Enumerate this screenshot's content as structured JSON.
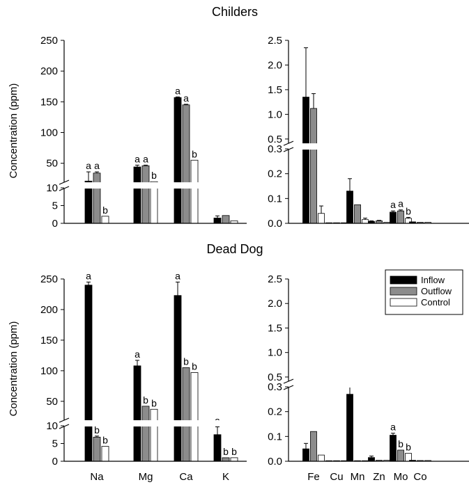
{
  "figure": {
    "section_titles": [
      "Childers",
      "Dead Dog"
    ],
    "ylabel": "Concentration (ppm)"
  },
  "colors": {
    "inflow": "#000000",
    "outflow": "#8c8c8c",
    "control": "#ffffff"
  },
  "chart_data": [
    {
      "id": "childers-major",
      "type": "bar",
      "title": "Childers",
      "ylabel": "Concentration (ppm)",
      "axis": "major",
      "categories": [
        "Na",
        "Mg",
        "Ca",
        "K"
      ],
      "show_category_labels": false,
      "series": [
        {
          "name": "Inflow",
          "color": "#000000",
          "values": [
            21,
            44,
            157,
            1.5
          ],
          "errors": [
            15,
            3,
            1,
            0.6
          ]
        },
        {
          "name": "Outflow",
          "color": "#8c8c8c",
          "values": [
            34,
            46,
            145,
            2.2
          ],
          "errors": [
            2,
            1,
            1,
            0
          ]
        },
        {
          "name": "Control",
          "color": "#ffffff",
          "values": [
            2,
            20,
            55,
            0.7
          ],
          "errors": [
            0,
            0,
            0,
            0
          ]
        }
      ],
      "letters": [
        [
          "a",
          "a",
          "b"
        ],
        [
          "a",
          "a",
          "b"
        ],
        [
          "a",
          "a",
          "b"
        ],
        [
          "",
          "",
          ""
        ]
      ],
      "ylim": [
        0,
        250
      ],
      "axis_break": {
        "lower_max": 10,
        "lower_ticks": [
          0,
          5,
          10
        ],
        "upper_ticks": [
          50,
          100,
          150,
          200,
          250
        ]
      }
    },
    {
      "id": "childers-trace",
      "type": "bar",
      "axis": "trace",
      "categories": [
        "Fe",
        "Cu",
        "Mn",
        "Zn",
        "Mo",
        "Co"
      ],
      "show_category_labels": false,
      "series": [
        {
          "name": "Inflow",
          "color": "#000000",
          "values": [
            1.35,
            0.002,
            0.13,
            0.008,
            0.045,
            0.006
          ],
          "errors": [
            1.0,
            0,
            0.05,
            0.002,
            0.005,
            0
          ]
        },
        {
          "name": "Outflow",
          "color": "#8c8c8c",
          "values": [
            1.12,
            0.002,
            0.075,
            0.01,
            0.05,
            0.004
          ],
          "errors": [
            0.3,
            0,
            0,
            0.002,
            0.004,
            0
          ]
        },
        {
          "name": "Control",
          "color": "#ffffff",
          "values": [
            0.04,
            0.002,
            0.015,
            0.004,
            0.02,
            0.004
          ],
          "errors": [
            0.03,
            0,
            0.006,
            0,
            0.004,
            0
          ]
        }
      ],
      "letters": [
        [
          "",
          "",
          ""
        ],
        [
          "",
          "",
          ""
        ],
        [
          "",
          "",
          ""
        ],
        [
          "",
          "",
          ""
        ],
        [
          "a",
          "a",
          "b"
        ],
        [
          "",
          "",
          ""
        ]
      ],
      "ylim": [
        0,
        2.5
      ],
      "axis_break": {
        "lower_max": 0.3,
        "lower_ticks": [
          0.0,
          0.1,
          0.2,
          0.3
        ],
        "upper_ticks": [
          0.5,
          1.0,
          1.5,
          2.0,
          2.5
        ]
      }
    },
    {
      "id": "deaddog-major",
      "type": "bar",
      "title": "Dead Dog",
      "ylabel": "Concentration (ppm)",
      "axis": "major",
      "categories": [
        "Na",
        "Mg",
        "Ca",
        "K"
      ],
      "show_category_labels": true,
      "series": [
        {
          "name": "Inflow",
          "color": "#000000",
          "values": [
            240,
            108,
            223,
            7.5
          ],
          "errors": [
            5,
            9,
            22,
            2.2
          ]
        },
        {
          "name": "Outflow",
          "color": "#8c8c8c",
          "values": [
            6.8,
            42,
            105,
            1
          ],
          "errors": [
            0.3,
            0,
            0,
            0
          ]
        },
        {
          "name": "Control",
          "color": "#ffffff",
          "values": [
            4.2,
            37,
            97,
            1
          ],
          "errors": [
            0,
            0,
            0,
            0
          ]
        }
      ],
      "letters": [
        [
          "a",
          "b",
          "b"
        ],
        [
          "a",
          "b",
          "b"
        ],
        [
          "a",
          "b",
          "b"
        ],
        [
          "a",
          "b",
          "b"
        ]
      ],
      "ylim": [
        0,
        250
      ],
      "axis_break": {
        "lower_max": 10,
        "lower_ticks": [
          0,
          5,
          10
        ],
        "upper_ticks": [
          50,
          100,
          150,
          200,
          250
        ]
      }
    },
    {
      "id": "deaddog-trace",
      "type": "bar",
      "axis": "trace",
      "categories": [
        "Fe",
        "Cu",
        "Mn",
        "Zn",
        "Mo",
        "Co"
      ],
      "show_category_labels": true,
      "series": [
        {
          "name": "Inflow",
          "color": "#000000",
          "values": [
            0.05,
            0.002,
            0.27,
            0.015,
            0.105,
            0.004
          ],
          "errors": [
            0.022,
            0,
            0.1,
            0.006,
            0.008,
            0
          ]
        },
        {
          "name": "Outflow",
          "color": "#8c8c8c",
          "values": [
            0.12,
            0.002,
            0.002,
            0.004,
            0.045,
            0.003
          ],
          "errors": [
            0,
            0,
            0,
            0,
            0,
            0
          ]
        },
        {
          "name": "Control",
          "color": "#ffffff",
          "values": [
            0.025,
            0.002,
            0.002,
            0.004,
            0.032,
            0.003
          ],
          "errors": [
            0,
            0,
            0,
            0,
            0,
            0
          ]
        }
      ],
      "letters": [
        [
          "",
          "",
          ""
        ],
        [
          "",
          "",
          ""
        ],
        [
          "",
          "",
          ""
        ],
        [
          "",
          "",
          ""
        ],
        [
          "a",
          "b",
          "b"
        ],
        [
          "",
          "",
          ""
        ]
      ],
      "ylim": [
        0,
        2.5
      ],
      "axis_break": {
        "lower_max": 0.3,
        "lower_ticks": [
          0.0,
          0.1,
          0.2,
          0.3
        ],
        "upper_ticks": [
          0.5,
          1.0,
          1.5,
          2.0,
          2.5
        ]
      },
      "legend": {
        "placement": "top-right",
        "entries": [
          "Inflow",
          "Outflow",
          "Control"
        ]
      }
    }
  ]
}
